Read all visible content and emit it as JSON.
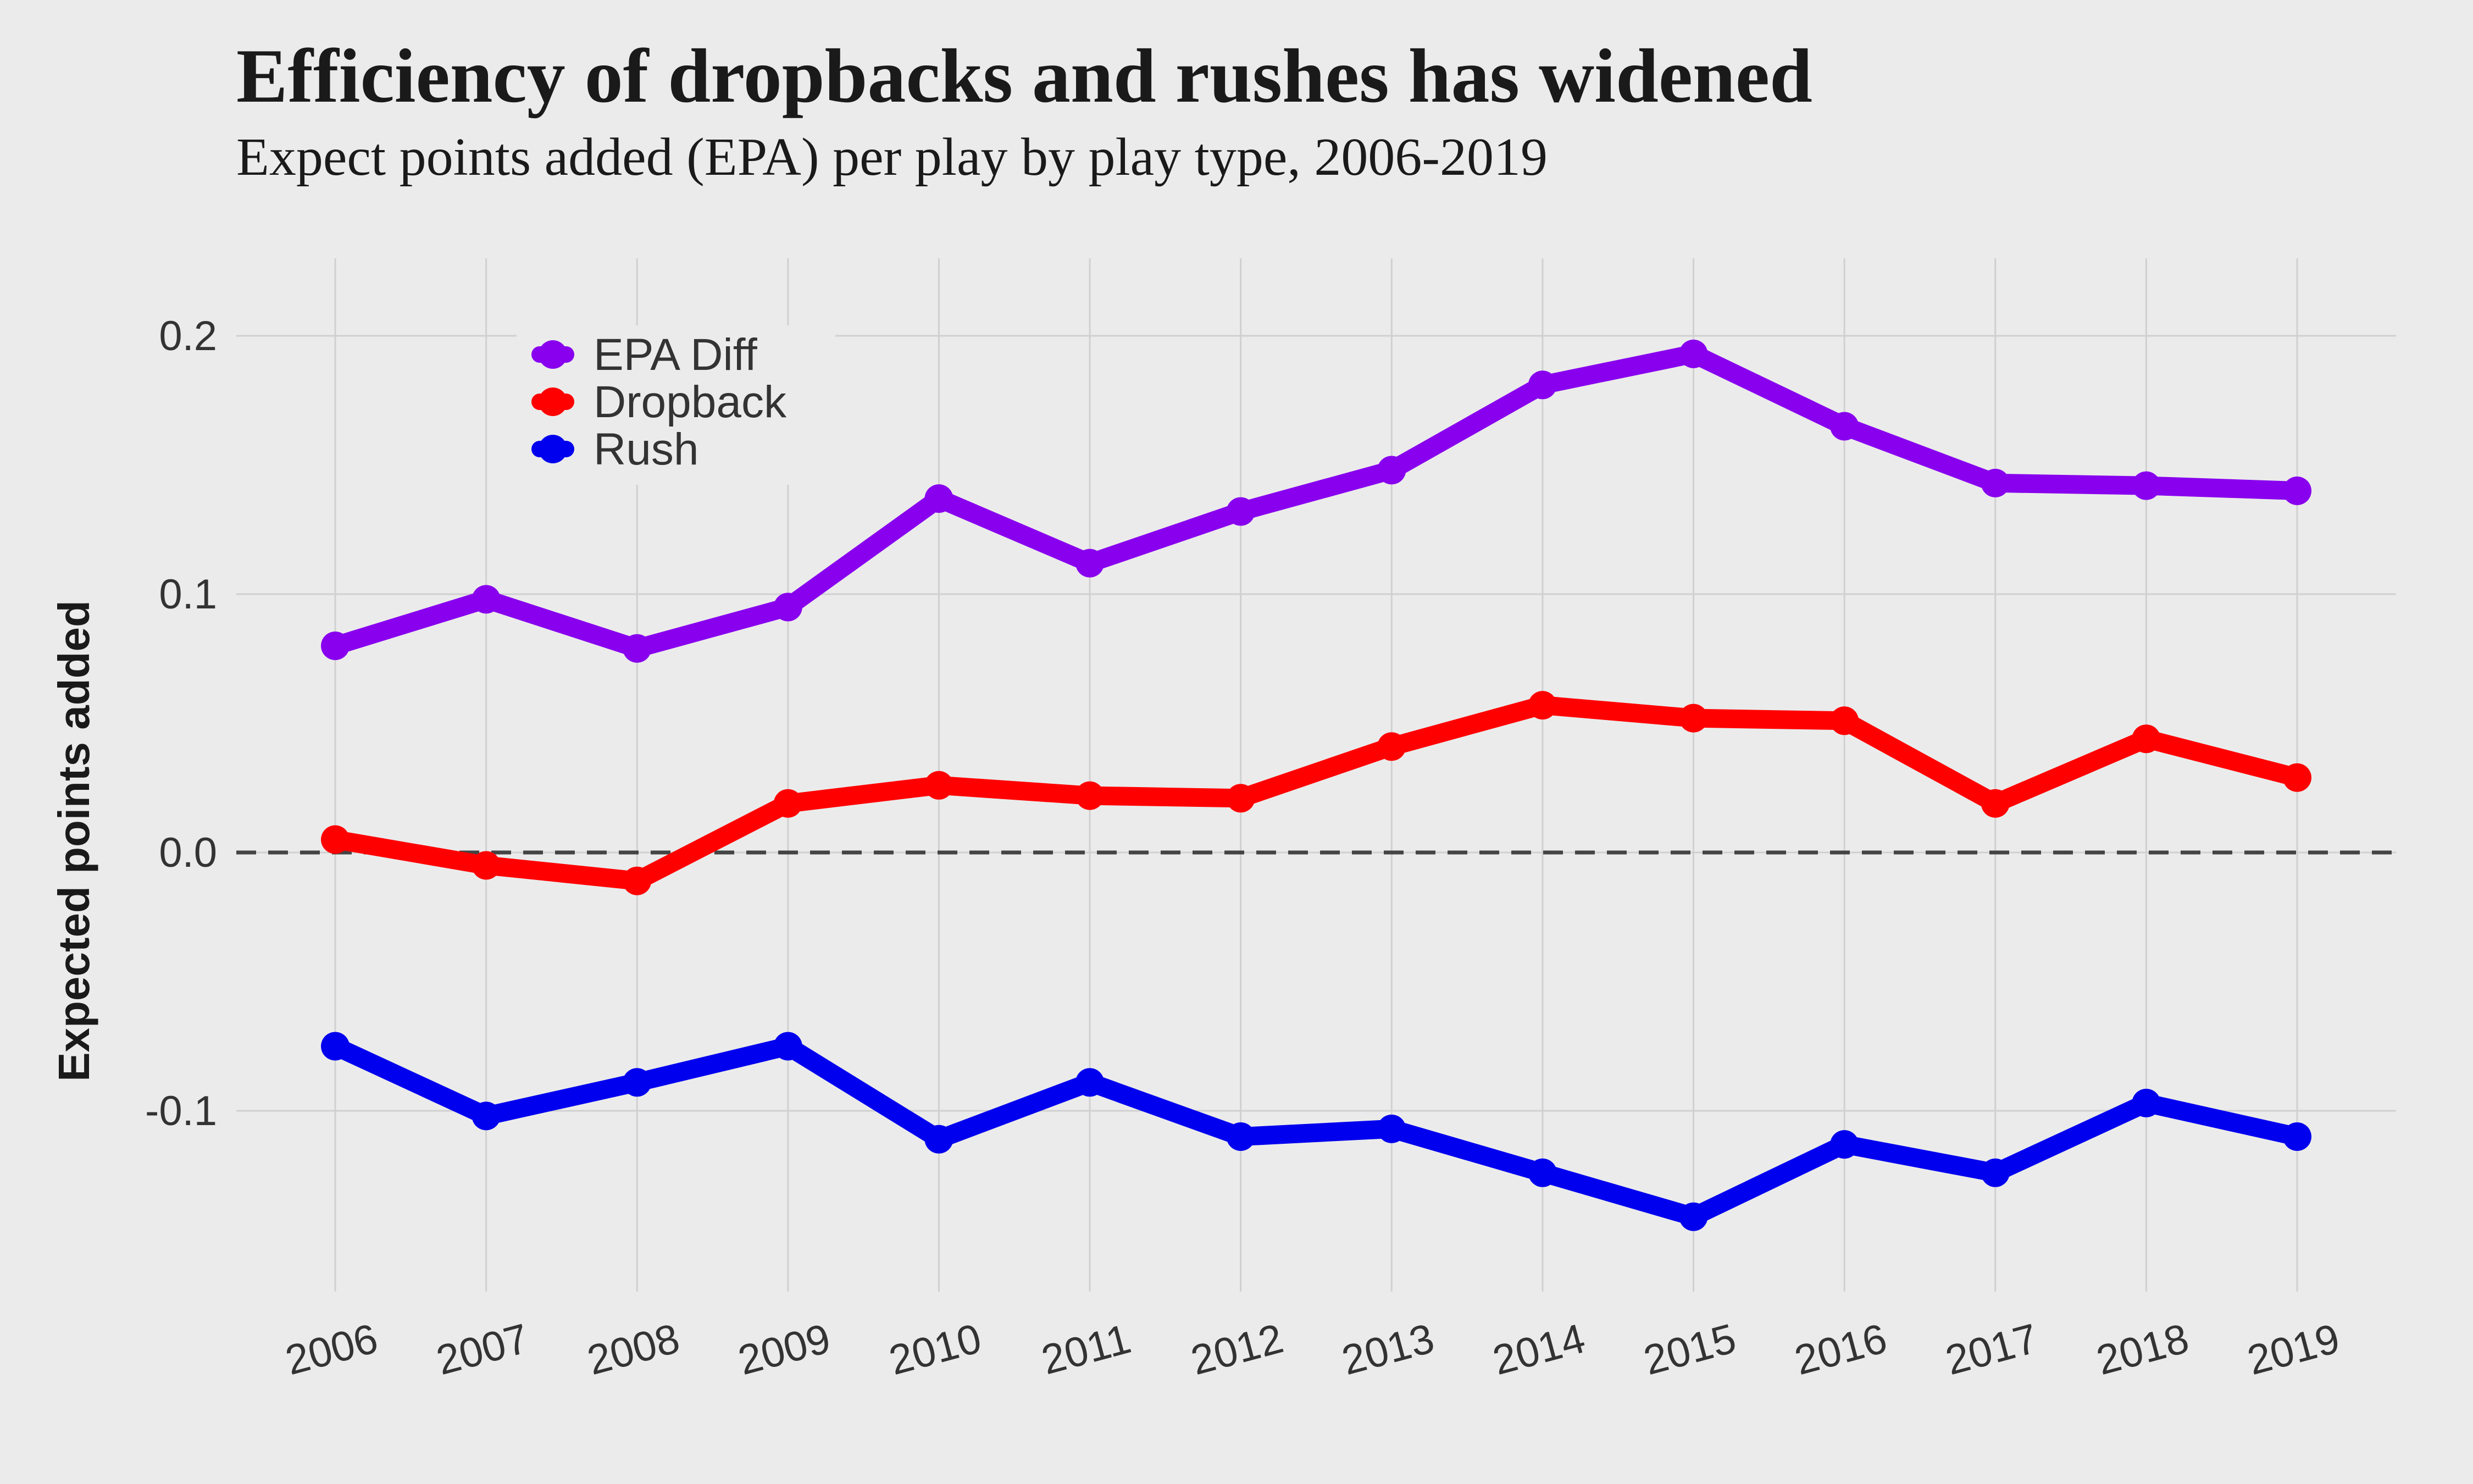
{
  "chart_data": {
    "type": "line",
    "title": "Efficiency of dropbacks and rushes has widened",
    "subtitle": "Expect points added (EPA) per play by play type, 2006-2019",
    "xlabel": "",
    "ylabel": "Expected points added",
    "x": [
      "2006",
      "2007",
      "2008",
      "2009",
      "2010",
      "2011",
      "2012",
      "2013",
      "2014",
      "2015",
      "2016",
      "2017",
      "2018",
      "2019"
    ],
    "ylim": [
      -0.17,
      0.23
    ],
    "yticks": [
      -0.1,
      0.0,
      0.1,
      0.2
    ],
    "ytick_labels": [
      "-0.1",
      "0.0",
      "0.1",
      "0.2"
    ],
    "reference_line": {
      "y": 0.0,
      "style": "dashed",
      "color": "#444444"
    },
    "grid": true,
    "legend_position": "top-left",
    "series": [
      {
        "name": "EPA Diff",
        "color": "#8800ee",
        "values": [
          0.08,
          0.098,
          0.079,
          0.095,
          0.137,
          0.112,
          0.132,
          0.148,
          0.181,
          0.193,
          0.165,
          0.143,
          0.142,
          0.14
        ]
      },
      {
        "name": "Dropback",
        "color": "#ff0000",
        "values": [
          0.005,
          -0.005,
          -0.011,
          0.019,
          0.026,
          0.022,
          0.021,
          0.041,
          0.057,
          0.052,
          0.051,
          0.019,
          0.044,
          0.029
        ]
      },
      {
        "name": "Rush",
        "color": "#0000ee",
        "values": [
          -0.075,
          -0.102,
          -0.089,
          -0.075,
          -0.111,
          -0.089,
          -0.11,
          -0.107,
          -0.124,
          -0.141,
          -0.113,
          -0.124,
          -0.097,
          -0.11
        ]
      }
    ]
  }
}
